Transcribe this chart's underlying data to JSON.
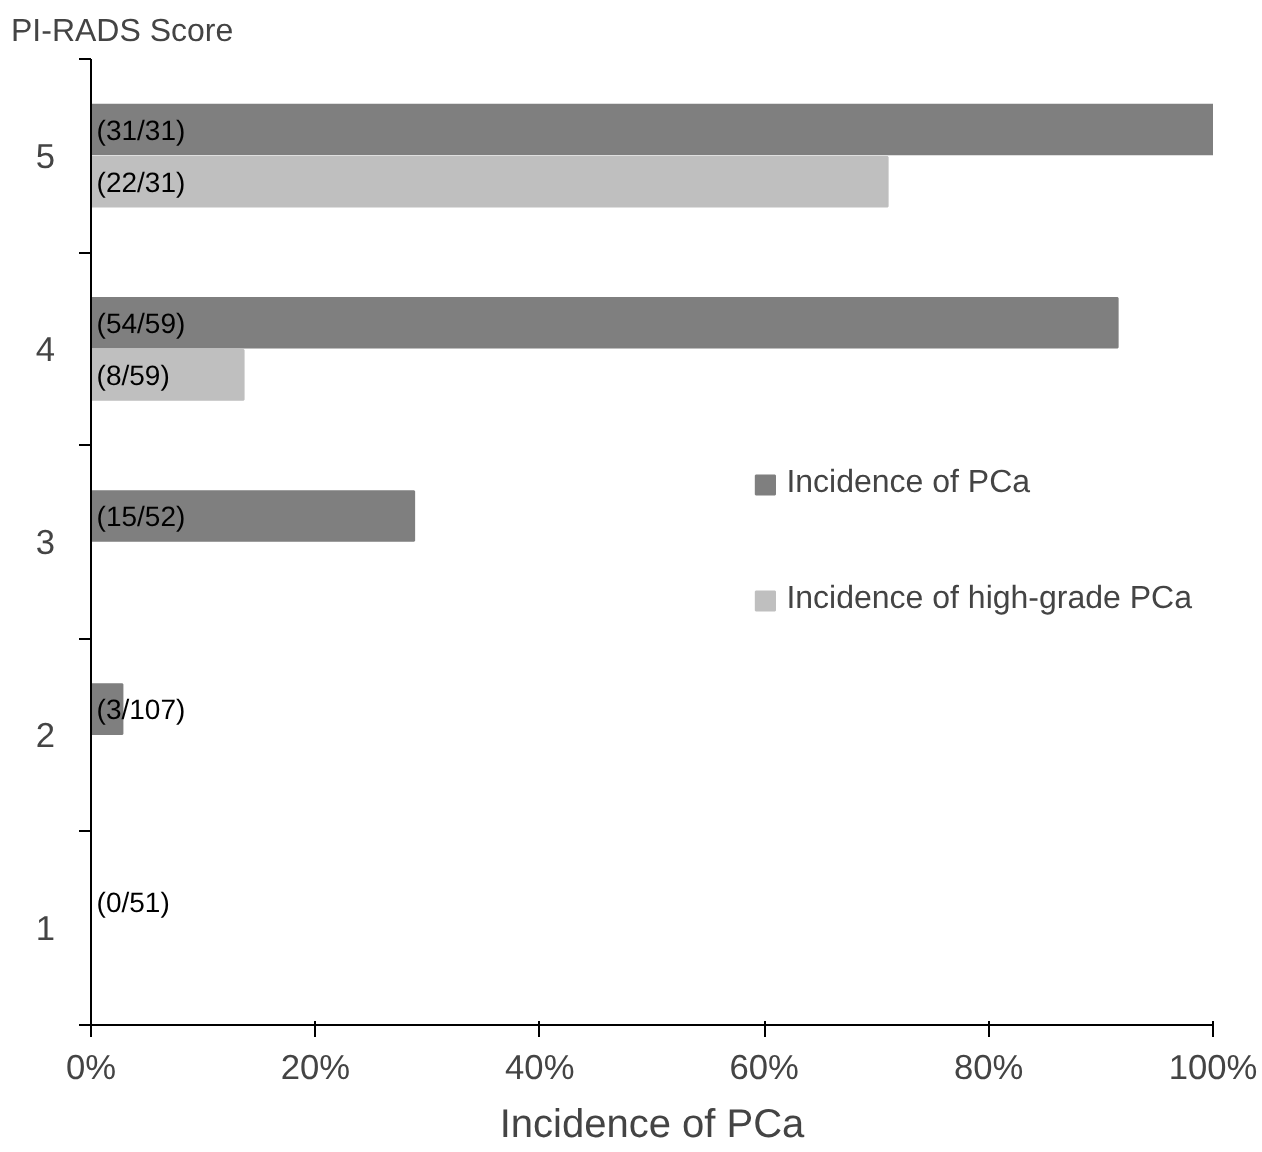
{
  "chart_data": {
    "type": "bar",
    "orientation": "horizontal",
    "ylabel": "PI-RADS Score",
    "xlabel": "Incidence of PCa",
    "categories": [
      "5",
      "4",
      "3",
      "2",
      "1"
    ],
    "series": [
      {
        "name": "Incidence of PCa",
        "color": "#7f7f7f",
        "values": [
          100,
          91.5,
          28.8,
          2.8,
          0
        ],
        "value_labels": [
          "(31/31)",
          "(54/59)",
          "(15/52)",
          "(3/107)",
          "(0/51)"
        ]
      },
      {
        "name": "Incidence of high-grade PCa",
        "color": "#bfbfbf",
        "values": [
          71,
          13.6,
          null,
          null,
          null
        ],
        "value_labels": [
          "(22/31)",
          "(8/59)",
          null,
          null,
          null
        ]
      }
    ],
    "xlim": [
      0,
      100
    ],
    "xticks": [
      {
        "value": 0,
        "label": "0%"
      },
      {
        "value": 20,
        "label": "20%"
      },
      {
        "value": 40,
        "label": "40%"
      },
      {
        "value": 60,
        "label": "60%"
      },
      {
        "value": 80,
        "label": "80%"
      },
      {
        "value": 100,
        "label": "100%"
      }
    ],
    "grid": false,
    "legend": "right"
  }
}
